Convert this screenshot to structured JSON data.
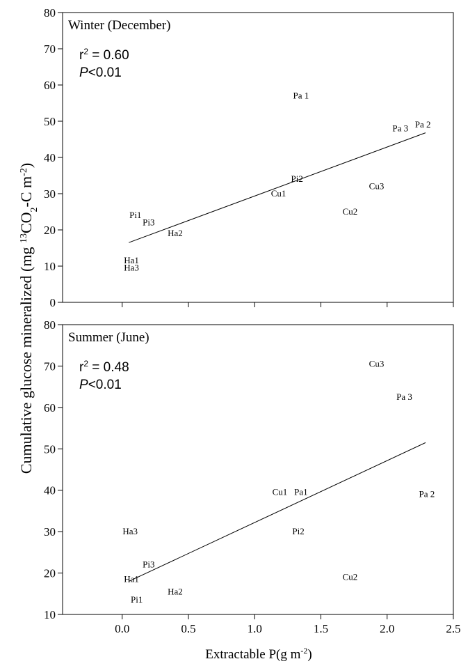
{
  "chart_data": {
    "type": "scatter",
    "shared_x": {
      "label_main": "Extractable P(g m",
      "label_sup": "-2",
      "label_end": ")",
      "xlim": [
        -0.45,
        2.5
      ],
      "ticks": [
        0.0,
        0.5,
        1.0,
        1.5,
        2.0,
        2.5
      ],
      "tick_labels": [
        "0.0",
        "0.5",
        "1.0",
        "1.5",
        "2.0",
        "2.5"
      ]
    },
    "shared_y": {
      "label_main": "Cumulative glucose mineralized (mg ",
      "label_sup": "13",
      "label_mid": "CO",
      "label_sub": "2",
      "label_mid2": "-C m",
      "label_sup2": "-2",
      "label_end": ")"
    },
    "panels": [
      {
        "title": "Winter (December)",
        "r2_prefix": "r",
        "r2_sup": "2",
        "r2_value": " = 0.60",
        "p_letter": "P",
        "p_value": "<0.01",
        "ylim": [
          0,
          80
        ],
        "yticks": [
          0,
          10,
          20,
          30,
          40,
          50,
          60,
          70,
          80
        ],
        "ytick_labels": [
          "0",
          "10",
          "20",
          "30",
          "40",
          "50",
          "60",
          "70",
          "80"
        ],
        "points": [
          {
            "label": "Pa 1",
            "x": 1.35,
            "y": 57
          },
          {
            "label": "Pa 3",
            "x": 2.1,
            "y": 48
          },
          {
            "label": "Pa 2",
            "x": 2.27,
            "y": 49
          },
          {
            "label": "Pi2",
            "x": 1.32,
            "y": 34
          },
          {
            "label": "Cu1",
            "x": 1.18,
            "y": 30
          },
          {
            "label": "Cu3",
            "x": 1.92,
            "y": 32
          },
          {
            "label": "Cu2",
            "x": 1.72,
            "y": 25
          },
          {
            "label": "Pi1",
            "x": 0.1,
            "y": 24
          },
          {
            "label": "Pi3",
            "x": 0.2,
            "y": 22
          },
          {
            "label": "Ha2",
            "x": 0.4,
            "y": 19
          },
          {
            "label": "Ha1",
            "x": 0.07,
            "y": 11.5
          },
          {
            "label": "Ha3",
            "x": 0.07,
            "y": 9.5
          }
        ],
        "fit": {
          "x": [
            0.05,
            2.29
          ],
          "y": [
            16.5,
            46.8
          ]
        }
      },
      {
        "title": "Summer (June)",
        "r2_prefix": "r",
        "r2_sup": "2",
        "r2_value": " = 0.48",
        "p_letter": "P",
        "p_value": "<0.01",
        "ylim": [
          10,
          80
        ],
        "yticks": [
          10,
          20,
          30,
          40,
          50,
          60,
          70,
          80
        ],
        "ytick_labels": [
          "10",
          "20",
          "30",
          "40",
          "50",
          "60",
          "70",
          "80"
        ],
        "points": [
          {
            "label": "Cu3",
            "x": 1.92,
            "y": 70.5
          },
          {
            "label": "Pa 3",
            "x": 2.13,
            "y": 62.5
          },
          {
            "label": "Cu1",
            "x": 1.19,
            "y": 39.5
          },
          {
            "label": "Pa1",
            "x": 1.35,
            "y": 39.5
          },
          {
            "label": "Pa 2",
            "x": 2.3,
            "y": 39
          },
          {
            "label": "Ha3",
            "x": 0.06,
            "y": 30
          },
          {
            "label": "Pi2",
            "x": 1.33,
            "y": 30
          },
          {
            "label": "Pi3",
            "x": 0.2,
            "y": 22
          },
          {
            "label": "Cu2",
            "x": 1.72,
            "y": 19
          },
          {
            "label": "Ha1",
            "x": 0.07,
            "y": 18.5
          },
          {
            "label": "Ha2",
            "x": 0.4,
            "y": 15.5
          },
          {
            "label": "Pi1",
            "x": 0.11,
            "y": 13.5
          }
        ],
        "fit": {
          "x": [
            0.05,
            2.29
          ],
          "y": [
            18.0,
            51.5
          ]
        }
      }
    ]
  }
}
